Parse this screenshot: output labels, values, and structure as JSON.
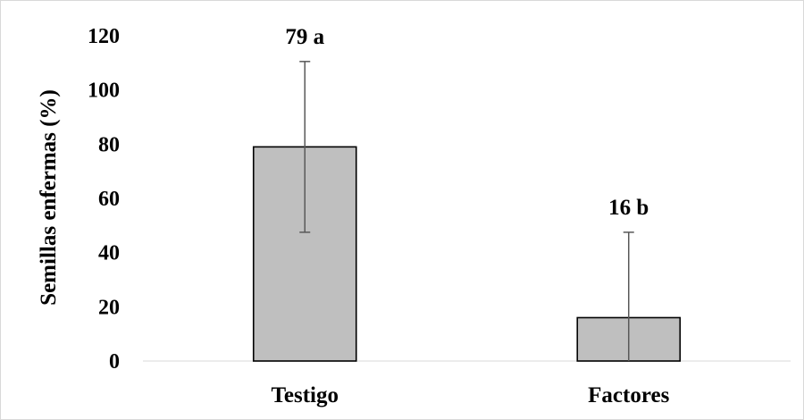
{
  "chart_data": {
    "type": "bar",
    "categories": [
      "Testigo",
      "Factores"
    ],
    "values": [
      79,
      16
    ],
    "error": [
      31.5,
      31.5
    ],
    "data_labels": [
      "79 a",
      "16 b"
    ],
    "ylabel": "Semillas enfermas (%)",
    "xlabel": "",
    "ylim": [
      0,
      120
    ],
    "yticks": [
      "0",
      "20",
      "40",
      "60",
      "80",
      "100",
      "120"
    ],
    "grid": false,
    "legend": "none",
    "colors": {
      "bar_fill": "#bfbfbf",
      "bar_stroke": "#000000",
      "error_bar": "#595959",
      "axis": "#d9d9d9"
    }
  }
}
